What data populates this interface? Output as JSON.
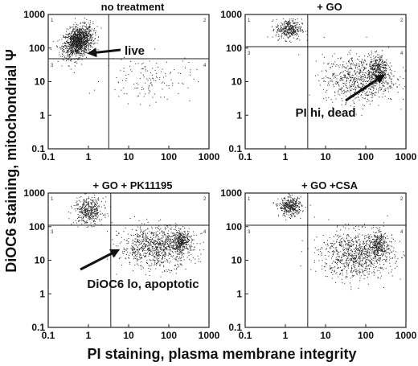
{
  "figure": {
    "xlabel": "PI staining, plasma membrane integrity",
    "ylabel": "DiOC6 staining, mitochondrial Ψ"
  },
  "colors": {
    "dots": "#222222",
    "lines": "#222222",
    "background": "#ffffff"
  },
  "chart_data": [
    {
      "type": "scatter",
      "title": "no treatment",
      "xscale": "log",
      "yscale": "log",
      "xlim": [
        0.1,
        1000
      ],
      "ylim": [
        0.1,
        1000
      ],
      "xticks": [
        "0.1",
        "1",
        "10",
        "100",
        "1000"
      ],
      "yticks": [
        "0.1",
        "1",
        "10",
        "100",
        "1000"
      ],
      "gate": {
        "x": 3.2,
        "y": 48
      },
      "quadrant_labels": [
        "1",
        "2",
        "3",
        "4"
      ],
      "clusters": [
        {
          "cx": 0.55,
          "cy": 160,
          "sx": 0.18,
          "sy": 0.22,
          "n": 1300
        },
        {
          "cx": 30,
          "cy": 12,
          "sx": 0.55,
          "sy": 0.35,
          "n": 140
        }
      ],
      "annotations": [
        {
          "text": "live",
          "x": 0.8,
          "y": 150
        }
      ]
    },
    {
      "type": "scatter",
      "title": "+ GO",
      "xscale": "log",
      "yscale": "log",
      "xlim": [
        0.1,
        1000
      ],
      "ylim": [
        0.1,
        1000
      ],
      "xticks": [
        "0.1",
        "1",
        "10",
        "100",
        "1000"
      ],
      "yticks": [
        "0.1",
        "1",
        "10",
        "100",
        "1000"
      ],
      "gate": {
        "x": 3.6,
        "y": 110
      },
      "quadrant_labels": [
        "1",
        "2",
        "3",
        "4"
      ],
      "clusters": [
        {
          "cx": 1.2,
          "cy": 370,
          "sx": 0.16,
          "sy": 0.15,
          "n": 350
        },
        {
          "cx": 70,
          "cy": 12,
          "sx": 0.45,
          "sy": 0.35,
          "n": 750
        },
        {
          "cx": 200,
          "cy": 25,
          "sx": 0.12,
          "sy": 0.2,
          "n": 300
        }
      ],
      "annotations": [
        {
          "text": "PI hi, dead",
          "x": 180,
          "y": 20
        }
      ]
    },
    {
      "type": "scatter",
      "title": "+ GO + PK11195",
      "xscale": "log",
      "yscale": "log",
      "xlim": [
        0.1,
        1000
      ],
      "ylim": [
        0.1,
        1000
      ],
      "xticks": [
        "0.1",
        "1",
        "10",
        "100",
        "1000"
      ],
      "yticks": [
        "0.1",
        "1",
        "10",
        "100",
        "1000"
      ],
      "gate": {
        "x": 3.6,
        "y": 110
      },
      "quadrant_labels": [
        "1",
        "2",
        "3",
        "4"
      ],
      "clusters": [
        {
          "cx": 1.0,
          "cy": 300,
          "sx": 0.18,
          "sy": 0.2,
          "n": 420
        },
        {
          "cx": 50,
          "cy": 25,
          "sx": 0.45,
          "sy": 0.3,
          "n": 950
        },
        {
          "cx": 200,
          "cy": 40,
          "sx": 0.12,
          "sy": 0.15,
          "n": 300
        }
      ],
      "annotations": [
        {
          "text": "DiOC6 lo, apoptotic",
          "x": 8,
          "y": 15
        }
      ]
    },
    {
      "type": "scatter",
      "title": "+ GO +CSA",
      "xscale": "log",
      "yscale": "log",
      "xlim": [
        0.1,
        1000
      ],
      "ylim": [
        0.1,
        1000
      ],
      "xticks": [
        "0.1",
        "1",
        "10",
        "100",
        "1000"
      ],
      "yticks": [
        "0.1",
        "1",
        "10",
        "100",
        "1000"
      ],
      "gate": {
        "x": 3.6,
        "y": 110
      },
      "quadrant_labels": [
        "1",
        "2",
        "3",
        "4"
      ],
      "clusters": [
        {
          "cx": 1.3,
          "cy": 400,
          "sx": 0.14,
          "sy": 0.14,
          "n": 380
        },
        {
          "cx": 60,
          "cy": 15,
          "sx": 0.45,
          "sy": 0.35,
          "n": 900
        },
        {
          "cx": 200,
          "cy": 30,
          "sx": 0.12,
          "sy": 0.2,
          "n": 280
        }
      ],
      "annotations": []
    }
  ]
}
